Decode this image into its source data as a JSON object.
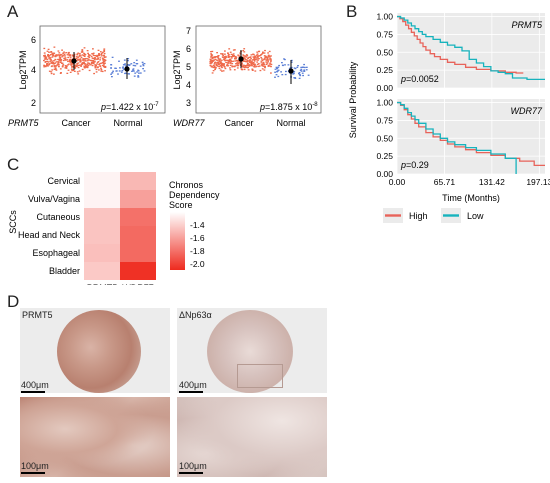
{
  "panels": {
    "A": "A",
    "B": "B",
    "C": "C",
    "D": "D"
  },
  "panel_a": {
    "ylabel": "Log2TPM",
    "plots": [
      {
        "gene": "PRMT5",
        "categories": [
          "Cancer",
          "Normal"
        ],
        "yticks": [
          "2",
          "4",
          "6"
        ],
        "pvalue": "=1.422 x 10",
        "pexp": "-7",
        "summary": [
          {
            "category": "Cancer",
            "mean": 4.55
          },
          {
            "category": "Normal",
            "mean": 4.15
          }
        ]
      },
      {
        "gene": "WDR77",
        "categories": [
          "Cancer",
          "Normal"
        ],
        "yticks": [
          "3",
          "4",
          "5",
          "6",
          "7"
        ],
        "pvalue": "=1.875 x 10",
        "pexp": "-8",
        "summary": [
          {
            "category": "Cancer",
            "mean": 4.95
          },
          {
            "category": "Normal",
            "mean": 4.3
          }
        ]
      }
    ]
  },
  "chart_data": [
    {
      "type": "line",
      "title": "PRMT5",
      "xlabel": "Time (Months)",
      "ylabel": "Survival Probability",
      "xticks": [
        "0.00",
        "65.71",
        "131.42",
        "197.13"
      ],
      "yticks": [
        "0.00",
        "0.25",
        "0.50",
        "0.75",
        "1.00"
      ],
      "xlim": [
        0,
        205
      ],
      "ylim": [
        0,
        1.05
      ],
      "pvalue": "=0.0052",
      "series": [
        {
          "name": "High",
          "color": "#e8635a",
          "x": [
            0,
            4,
            8,
            12,
            16,
            20,
            24,
            28,
            32,
            36,
            40,
            46,
            52,
            60,
            70,
            80,
            95,
            110,
            130,
            150,
            165,
            175
          ],
          "y": [
            1.0,
            0.97,
            0.93,
            0.88,
            0.83,
            0.78,
            0.73,
            0.68,
            0.63,
            0.58,
            0.53,
            0.48,
            0.44,
            0.4,
            0.36,
            0.33,
            0.29,
            0.26,
            0.24,
            0.22,
            0.21,
            0.21
          ]
        },
        {
          "name": "Low",
          "color": "#17b3bd",
          "x": [
            0,
            5,
            10,
            15,
            20,
            25,
            30,
            35,
            40,
            50,
            60,
            70,
            80,
            90,
            100,
            110,
            120,
            130,
            140,
            150,
            160,
            180,
            205
          ],
          "y": [
            1.0,
            0.98,
            0.95,
            0.91,
            0.87,
            0.83,
            0.79,
            0.75,
            0.72,
            0.68,
            0.64,
            0.6,
            0.57,
            0.52,
            0.4,
            0.35,
            0.3,
            0.24,
            0.22,
            0.2,
            0.14,
            0.12,
            0.12
          ]
        }
      ]
    },
    {
      "type": "line",
      "title": "WDR77",
      "xlabel": "Time (Months)",
      "ylabel": "Survival Probability",
      "xticks": [
        "0.00",
        "65.71",
        "131.42",
        "197.13"
      ],
      "yticks": [
        "0.00",
        "0.25",
        "0.50",
        "0.75",
        "1.00"
      ],
      "xlim": [
        0,
        205
      ],
      "ylim": [
        0,
        1.05
      ],
      "pvalue": "=0.29",
      "series": [
        {
          "name": "High",
          "color": "#e8635a",
          "x": [
            0,
            5,
            10,
            15,
            20,
            25,
            30,
            40,
            50,
            60,
            70,
            80,
            95,
            110,
            130,
            150,
            170,
            190,
            205
          ],
          "y": [
            1.0,
            0.96,
            0.9,
            0.83,
            0.77,
            0.71,
            0.66,
            0.58,
            0.52,
            0.47,
            0.42,
            0.38,
            0.34,
            0.3,
            0.26,
            0.22,
            0.18,
            0.12,
            0.12
          ]
        },
        {
          "name": "Low",
          "color": "#17b3bd",
          "x": [
            0,
            5,
            10,
            15,
            20,
            25,
            30,
            40,
            50,
            60,
            70,
            80,
            95,
            110,
            130,
            150,
            165
          ],
          "y": [
            1.0,
            0.97,
            0.92,
            0.86,
            0.81,
            0.76,
            0.71,
            0.63,
            0.56,
            0.5,
            0.45,
            0.41,
            0.37,
            0.33,
            0.28,
            0.22,
            0.0
          ]
        }
      ]
    },
    {
      "type": "heatmap",
      "ylabel": "SCCs",
      "rows": [
        "Cervical",
        "Vulva/Vagina",
        "Cutaneous",
        "Head and Neck",
        "Esophageal",
        "Bladder"
      ],
      "columns": [
        "PRMT5",
        "WDR77"
      ],
      "values": [
        [
          -1.2,
          -1.45
        ],
        [
          -1.2,
          -1.55
        ],
        [
          -1.4,
          -1.75
        ],
        [
          -1.4,
          -1.78
        ],
        [
          -1.42,
          -1.78
        ],
        [
          -1.38,
          -2.02
        ]
      ],
      "legend_title": [
        "Chronos",
        "Dependency",
        "Score"
      ],
      "legend_ticks": [
        "-1.4",
        "-1.6",
        "-1.8",
        "-2.0"
      ],
      "scale": {
        "min": -2.05,
        "max": -1.15,
        "low_color": "#ee2a1e",
        "high_color": "#ffffff"
      }
    }
  ],
  "legend_b": {
    "items": [
      {
        "label": "High",
        "color": "#e8635a"
      },
      {
        "label": "Low",
        "color": "#17b3bd"
      }
    ]
  },
  "panel_d": {
    "labels": [
      "PRMT5",
      "ΔNp63α"
    ],
    "scale_top": "400μm",
    "scale_bottom": "100μm"
  }
}
